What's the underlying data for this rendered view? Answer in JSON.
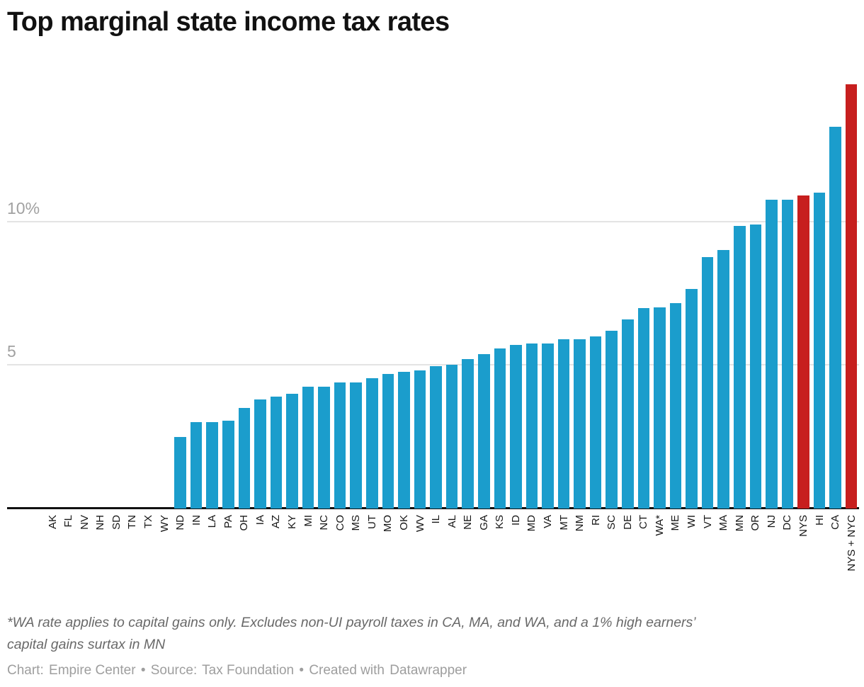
{
  "title": "Top marginal state income tax rates",
  "chart_data": {
    "type": "bar",
    "title": "Top marginal state income tax rates",
    "unit": "%",
    "categories": [
      "AK",
      "FL",
      "NV",
      "NH",
      "SD",
      "TN",
      "TX",
      "WY",
      "ND",
      "IN",
      "LA",
      "PA",
      "OH",
      "IA",
      "AZ",
      "KY",
      "MI",
      "NC",
      "CO",
      "MS",
      "UT",
      "MO",
      "OK",
      "WV",
      "IL",
      "AL",
      "NE",
      "GA",
      "KS",
      "ID",
      "MD",
      "VA",
      "MT",
      "NM",
      "RI",
      "SC",
      "DE",
      "CT",
      "WA*",
      "ME",
      "WI",
      "VT",
      "MA",
      "MN",
      "OR",
      "NJ",
      "DC",
      "NYS",
      "HI",
      "CA",
      "NYS + NYC"
    ],
    "values": [
      0,
      0,
      0,
      0,
      0,
      0,
      0,
      0,
      2.5,
      3.0,
      3.0,
      3.07,
      3.5,
      3.8,
      3.9,
      4.0,
      4.25,
      4.25,
      4.4,
      4.4,
      4.55,
      4.7,
      4.75,
      4.82,
      4.95,
      5.0,
      5.2,
      5.39,
      5.58,
      5.7,
      5.75,
      5.75,
      5.9,
      5.9,
      5.99,
      6.2,
      6.6,
      6.99,
      7.0,
      7.15,
      7.65,
      8.75,
      9.0,
      9.85,
      9.9,
      10.75,
      10.75,
      10.9,
      11.0,
      13.3,
      14.776
    ],
    "highlighted_categories": [
      "NYS",
      "NYS + NYC"
    ],
    "bar_color": "#1b9dcc",
    "highlight_color": "#c71f1e",
    "ylim": [
      0,
      15
    ],
    "yticks": [
      {
        "value": 5,
        "label": "5"
      },
      {
        "value": 10,
        "label": "10%"
      }
    ],
    "grid": "horizontal",
    "legend": "none"
  },
  "footnote": {
    "line1": "*WA rate applies to capital gains only. Excludes non-UI payroll taxes in CA, MA, and WA, and a 1% high earners’",
    "line2": "capital gains surtax in MN"
  },
  "attribution": {
    "chart_label": "Chart:",
    "chart_value": "Empire Center",
    "sep1": "•",
    "source_label": "Source:",
    "source_value": "Tax Foundation",
    "sep2": "•",
    "created_label": "Created with",
    "created_value": "Datawrapper"
  }
}
